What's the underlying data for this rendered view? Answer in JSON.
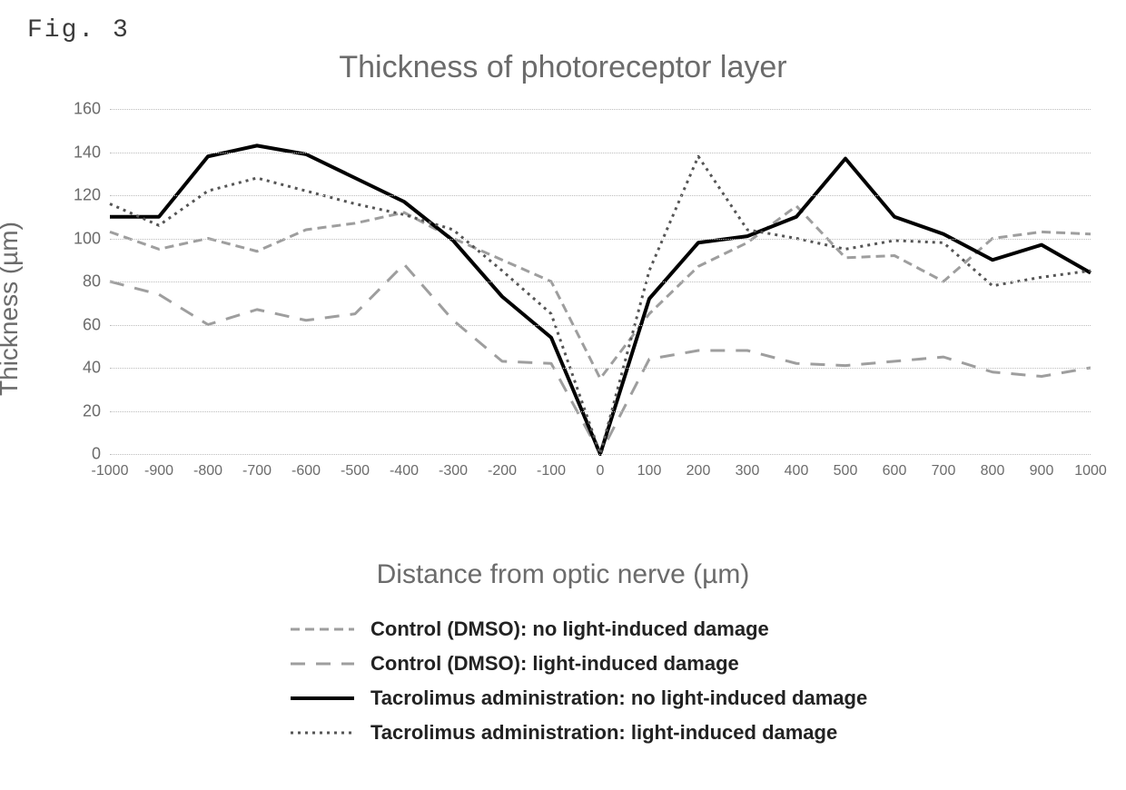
{
  "figure_label": "Fig. 3",
  "title": "Thickness of photoreceptor layer",
  "y_axis_label": "Thickness (µm)",
  "x_axis_label": "Distance from optic nerve (µm)",
  "chart": {
    "type": "line",
    "background_color": "#ffffff",
    "grid_color": "#bdbdbd",
    "title_fontsize": 34,
    "title_color": "#6b6b6b",
    "axis_label_fontsize": 28,
    "axis_label_color": "#6b6b6b",
    "tick_fontsize": 18,
    "tick_color": "#6b6b6b",
    "ylim": [
      0,
      160
    ],
    "ytick_step": 20,
    "x_values": [
      -1000,
      -900,
      -800,
      -700,
      -600,
      -500,
      -400,
      -300,
      -200,
      -100,
      0,
      100,
      200,
      300,
      400,
      500,
      600,
      700,
      800,
      900,
      1000
    ],
    "x_tick_labels": [
      "-1000",
      "-900",
      "-800",
      "-700",
      "-600",
      "-500",
      "-400",
      "-300",
      "-200",
      "-100",
      "0",
      "100",
      "200",
      "300",
      "400",
      "500",
      "600",
      "700",
      "800",
      "900",
      "1000"
    ],
    "series": [
      {
        "name": "Control (DMSO): no light-induced damage",
        "color": "#9e9e9e",
        "line_width": 3,
        "dash": "10,6",
        "values": [
          103,
          95,
          100,
          94,
          104,
          107,
          112,
          100,
          90,
          80,
          35,
          65,
          87,
          98,
          115,
          91,
          92,
          80,
          100,
          103,
          102
        ]
      },
      {
        "name": "Control (DMSO): light-induced damage",
        "color": "#9e9e9e",
        "line_width": 3,
        "dash": "16,12",
        "values": [
          80,
          74,
          60,
          67,
          62,
          65,
          88,
          62,
          43,
          42,
          0,
          44,
          48,
          48,
          42,
          41,
          43,
          45,
          38,
          36,
          40
        ]
      },
      {
        "name": "Tacrolimus administration: no light-induced damage",
        "color": "#000000",
        "line_width": 4,
        "dash": "none",
        "values": [
          110,
          110,
          138,
          143,
          139,
          128,
          117,
          99,
          73,
          54,
          0,
          72,
          98,
          101,
          110,
          137,
          110,
          102,
          90,
          97,
          84
        ]
      },
      {
        "name": "Tacrolimus administration: light-induced damage",
        "color": "#555555",
        "line_width": 3,
        "dash": "3,5",
        "values": [
          116,
          106,
          122,
          128,
          122,
          116,
          111,
          104,
          85,
          65,
          0,
          85,
          138,
          104,
          100,
          95,
          99,
          98,
          78,
          82,
          85
        ]
      }
    ]
  },
  "legend": {
    "label_fontsize": 22,
    "label_fontweight": 700,
    "label_color": "#222222",
    "items": [
      {
        "label": "Control (DMSO): no light-induced damage",
        "color": "#9e9e9e",
        "dash": "10,6",
        "line_width": 3
      },
      {
        "label": "Control (DMSO): light-induced damage",
        "color": "#9e9e9e",
        "dash": "16,12",
        "line_width": 3
      },
      {
        "label": "Tacrolimus administration: no light-induced damage",
        "color": "#000000",
        "dash": "none",
        "line_width": 4
      },
      {
        "label": "Tacrolimus administration: light-induced damage",
        "color": "#555555",
        "dash": "3,5",
        "line_width": 3
      }
    ]
  }
}
